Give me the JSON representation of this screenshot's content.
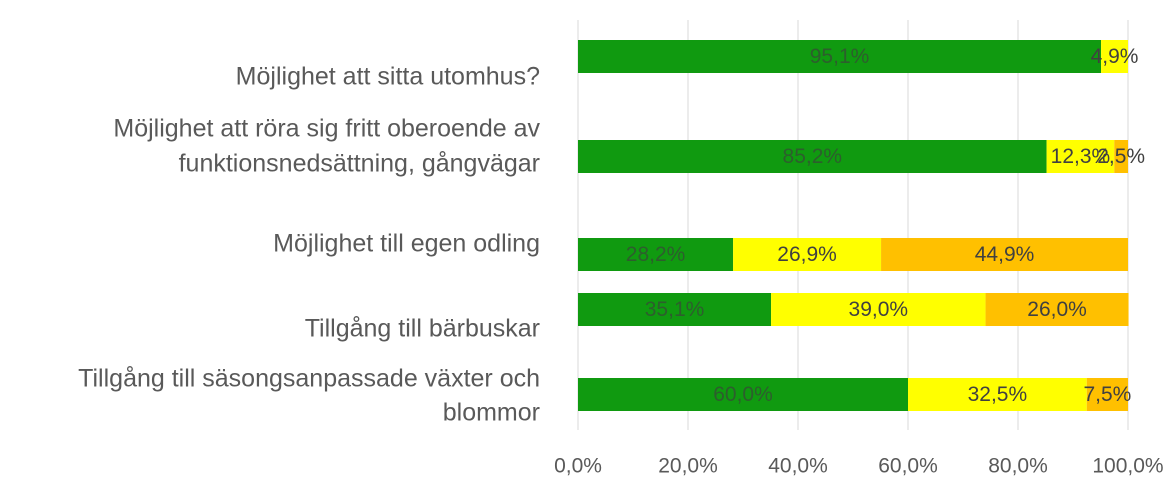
{
  "chart_data": {
    "type": "stacked-barh",
    "categories": [
      [
        "Möjlighet att sitta utomhus?"
      ],
      [
        "Möjlighet att röra sig fritt oberoende av",
        "funktionsnedsättning, gångvägar"
      ],
      [
        "Möjlighet till egen odling"
      ],
      [
        "Tillgång till bärbuskar"
      ],
      [
        "Tillgång till säsongsanpassade växter och",
        "blommor"
      ]
    ],
    "series": [
      {
        "color": "#109a10",
        "values": [
          95.1,
          85.2,
          28.2,
          35.1,
          60.0
        ],
        "value_labels": [
          "95,1%",
          "85,2%",
          "28,2%",
          "35,1%",
          "60,0%"
        ]
      },
      {
        "color": "#ffff00",
        "values": [
          4.9,
          12.3,
          26.9,
          39.0,
          32.5
        ],
        "value_labels": [
          "4,9%",
          "12,3%",
          "26,9%",
          "39,0%",
          "32,5%"
        ]
      },
      {
        "color": "#ffc000",
        "values": [
          null,
          2.5,
          44.9,
          26.0,
          7.5
        ],
        "value_labels": [
          null,
          "2,5%",
          "44,9%",
          "26,0%",
          "7,5%"
        ]
      }
    ],
    "xlim": [
      0,
      100
    ],
    "xticks": [
      {
        "value": 0,
        "label": "0,0%"
      },
      {
        "value": 20,
        "label": "20,0%"
      },
      {
        "value": 40,
        "label": "40,0%"
      },
      {
        "value": 60,
        "label": "60,0%"
      },
      {
        "value": 80,
        "label": "80,0%"
      },
      {
        "value": 100,
        "label": "100,0%"
      }
    ],
    "grid": true
  }
}
